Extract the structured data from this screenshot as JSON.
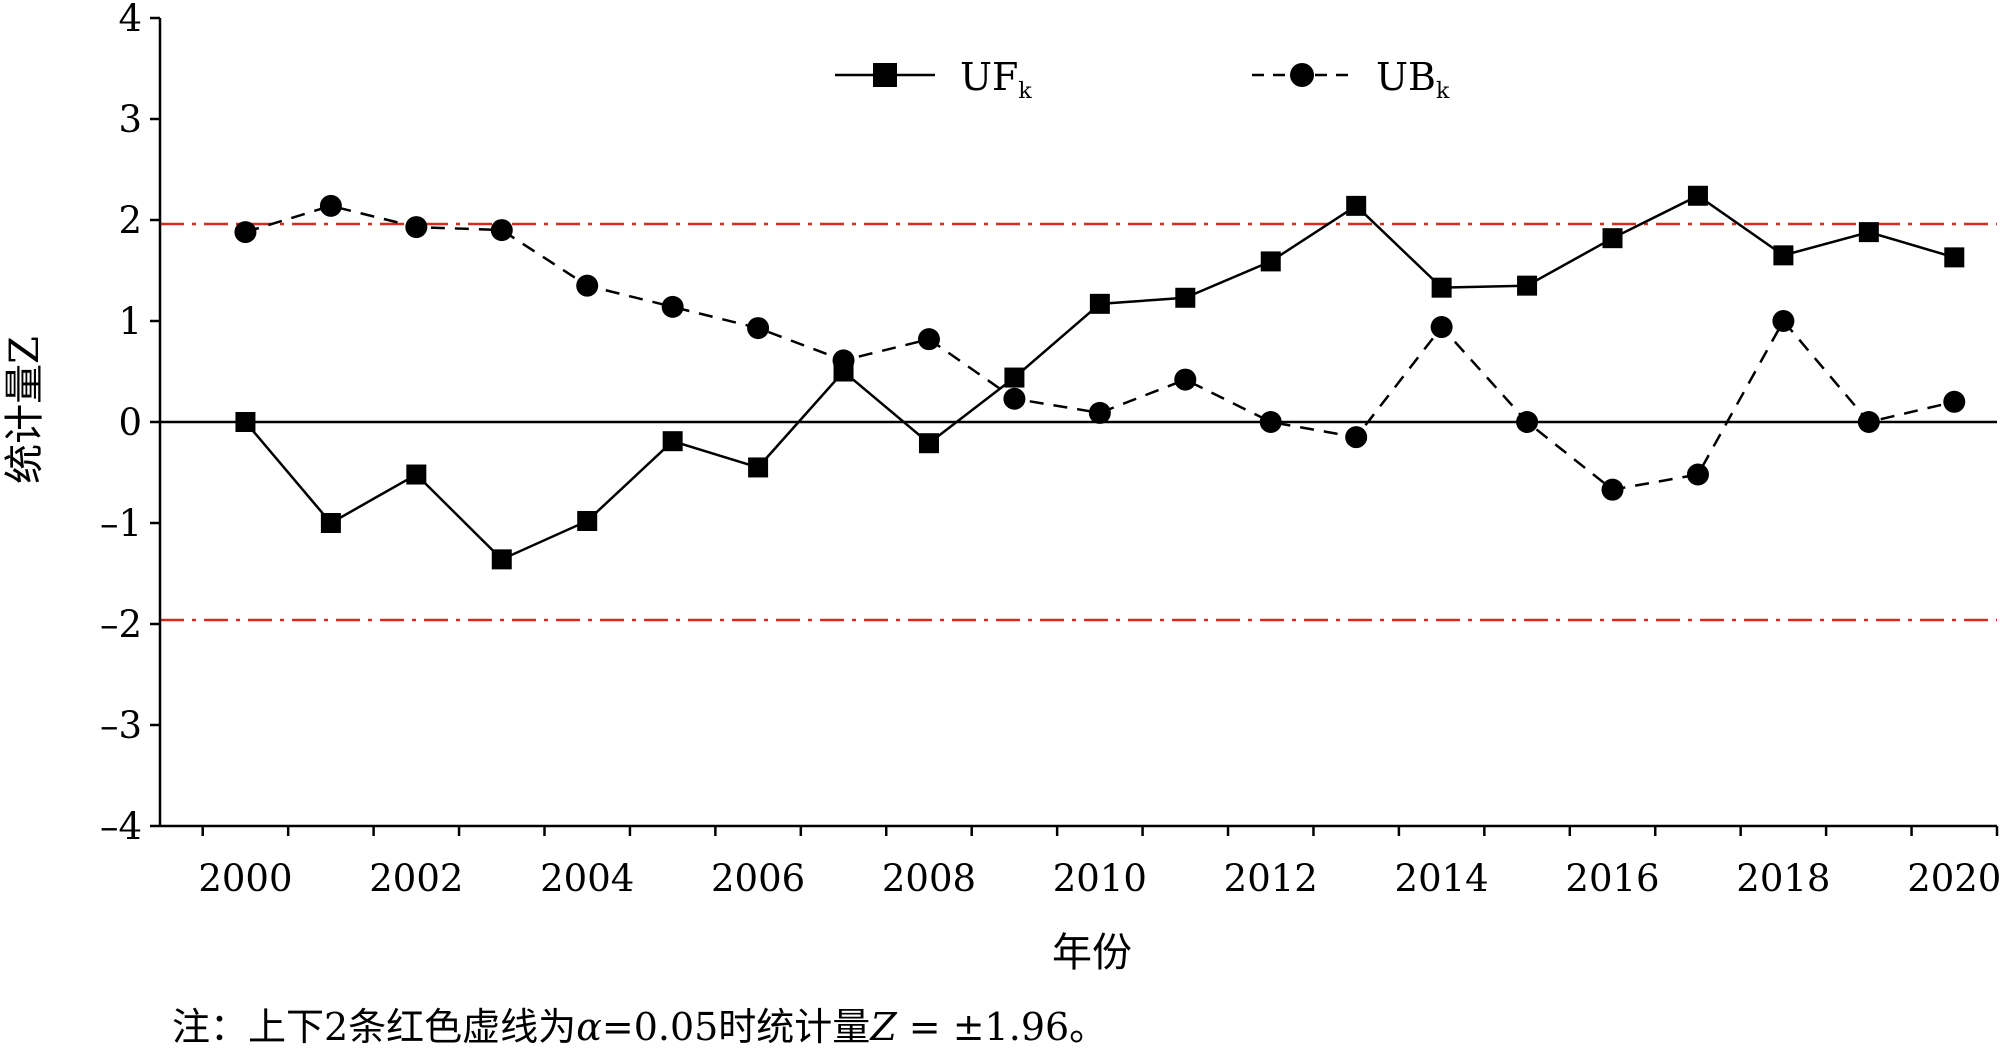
{
  "chart_data": {
    "type": "line",
    "xlabel": "年份",
    "ylabel": "统计量Z",
    "xlim": [
      1999,
      2020.5
    ],
    "ylim": [
      -4,
      4
    ],
    "x_ticks": [
      "2000",
      "2002",
      "2004",
      "2006",
      "2008",
      "2010",
      "2012",
      "2014",
      "2016",
      "2018",
      "2020"
    ],
    "y_ticks": [
      "4",
      "3",
      "2",
      "1",
      "0",
      "–1",
      "–2",
      "–3",
      "–4"
    ],
    "x": [
      2000,
      2001,
      2002,
      2003,
      2004,
      2005,
      2006,
      2007,
      2008,
      2009,
      2010,
      2011,
      2012,
      2013,
      2014,
      2015,
      2016,
      2017,
      2018,
      2019,
      2020
    ],
    "series": [
      {
        "name": "UF",
        "subscript": "k",
        "style": "solid",
        "marker": "square",
        "color": "#000000",
        "values": [
          0.0,
          -1.0,
          -0.52,
          -1.36,
          -0.98,
          -0.19,
          -0.45,
          0.5,
          -0.21,
          0.44,
          1.17,
          1.23,
          1.59,
          2.14,
          1.33,
          1.35,
          1.82,
          2.24,
          1.65,
          1.88,
          1.63
        ]
      },
      {
        "name": "UB",
        "subscript": "k",
        "style": "dashed",
        "marker": "circle",
        "color": "#000000",
        "values": [
          1.88,
          2.14,
          1.93,
          1.9,
          1.35,
          1.14,
          0.93,
          0.61,
          0.82,
          0.23,
          0.09,
          0.42,
          0.0,
          -0.15,
          0.94,
          0.0,
          -0.67,
          -0.52,
          1.0,
          0.0,
          0.2
        ]
      }
    ],
    "reference_lines": [
      {
        "y": 1.96,
        "color": "#d62a1e",
        "style": "dash-dot"
      },
      {
        "y": -1.96,
        "color": "#d62a1e",
        "style": "dash-dot"
      }
    ],
    "zero_line": {
      "y": 0,
      "color": "#000000"
    },
    "legend_position": "top-center",
    "grid": false
  },
  "note": {
    "prefix": "注：上下2条红色虚线为",
    "alpha_symbol": "α",
    "mid": "=0.05时统计量",
    "z_symbol": "Z",
    "suffix": " = ±1.96。"
  }
}
